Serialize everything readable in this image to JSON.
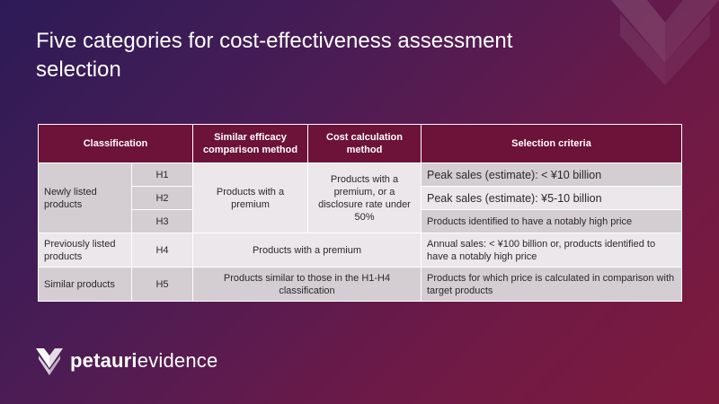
{
  "slide": {
    "title": "Five categories for cost-effectiveness assessment selection"
  },
  "table": {
    "headers": {
      "classification": "Classification",
      "similar_efficacy": "Similar efficacy comparison method",
      "cost_calc": "Cost calculation method",
      "selection": "Selection criteria"
    },
    "newly_listed": "Newly listed products",
    "previously_listed": "Previously listed products",
    "similar_products": "Similar products",
    "codes": [
      "H1",
      "H2",
      "H3",
      "H4",
      "H5"
    ],
    "premium_method": "Products with a premium",
    "cost_method": "Products with a premium, or a disclosure rate under 50%",
    "h4_method": "Products with a premium",
    "h5_method": "Products similar to those in the H1-H4 classification",
    "criteria": [
      "Peak sales (estimate): < ¥10 billion",
      "Peak sales (estimate): ¥5-10 billion",
      "Products identified to have a notably high price",
      "Annual sales: < ¥100 billion or, products identified to have a notably high price",
      "Products for which price is calculated in comparison with target products"
    ]
  },
  "logo": {
    "bold": "petauri",
    "rest": "evidence"
  },
  "colors": {
    "header_bg": "#6d1239",
    "cell_dark": "#d4cdd1",
    "cell_light": "#ebe7ea"
  }
}
